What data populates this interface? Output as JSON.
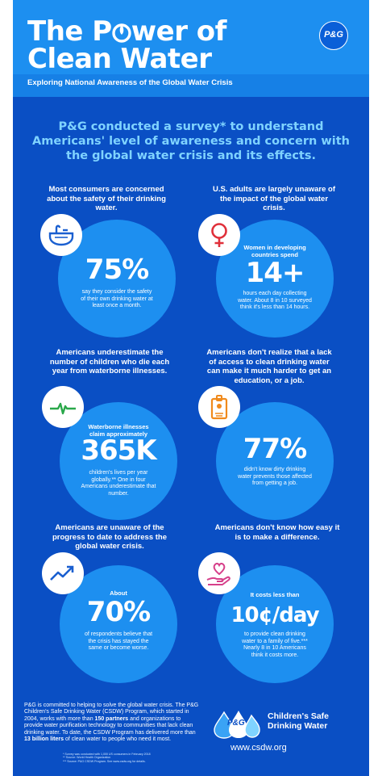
{
  "header": {
    "title_line1_a": "The P",
    "title_line1_b": "wer of",
    "title_line2": "Clean Water",
    "subtitle": "Exploring National Awareness of the Global Water Crisis",
    "logo": "P&G"
  },
  "intro": "P&G conducted a survey* to understand Americans' level of awareness and concern with the global water crisis and its effects.",
  "cards": [
    {
      "lead": "Most consumers are concerned about the safety of their drinking water.",
      "icon": "sink-icon",
      "pre": "",
      "big": "75%",
      "desc": "say they consider the safety of their own drinking water at least once a month."
    },
    {
      "lead": "U.S. adults are largely unaware of the impact of the global water crisis.",
      "icon": "female-symbol-icon",
      "pre": "Women in developing countries spend",
      "big": "14+",
      "desc": "hours each day collecting water. About 8 in 10 surveyed think it's less than 14 hours."
    },
    {
      "lead": "Americans underestimate the number of children who die each year from waterborne illnesses.",
      "icon": "heartbeat-icon",
      "pre": "Waterborne illnesses claim approximately",
      "big": "365K",
      "desc": "children's lives per year globally.** One in four Americans underestimate that number."
    },
    {
      "lead": "Americans don't realize that a lack of access to clean drinking water can make it much harder to get an education, or a job.",
      "icon": "id-badge-icon",
      "pre": "",
      "big": "77%",
      "desc": "didn't know dirty drinking water prevents those affected from getting a job."
    },
    {
      "lead": "Americans are unaware of the progress to date to address the global water crisis.",
      "icon": "trend-up-icon",
      "pre": "About",
      "big": "70%",
      "desc": "of respondents believe that the crisis has stayed the same or become worse."
    },
    {
      "lead": "Americans don't know how easy it is to make a difference.",
      "icon": "heart-hand-icon",
      "pre": "It costs less than",
      "big": "10¢/day",
      "desc": "to provide clean drinking water to a family of five.*** Nearly 8 in 10 Americans think it costs more."
    }
  ],
  "footer": {
    "p1": "P&G is committed to helping to solve the global water crisis. The P&G Children's Safe Drinking Water (CSDW) Program, which started in 2004, works with more than ",
    "b1": "150 partners",
    "p2": " and organizations to provide water purification technology to communities that lack clean drinking water. To date, the CSDW Program has delivered more than ",
    "b2": "13 billion liters",
    "p3": " of clean water to people who need it most.",
    "note1": "* Survey was conducted with 1,000 US consumers in February 2018",
    "note2": "** Source: World Health Organization",
    "note3": "*** Source: P&G CSDW Program. See www.csdw.org for details.",
    "csdw_logo": "P&G",
    "csdw_name_1": "Children's Safe",
    "csdw_name_2": "Drinking Water",
    "website": "www.csdw.org"
  },
  "colors": {
    "background": "#0a4fc4",
    "header": "#1d8ff0",
    "bubble": "#1d8ff0",
    "intro_text": "#7fd3ff",
    "icon_sink": "#1a5fd0",
    "icon_female": "#e0303a",
    "icon_heartbeat": "#2aa84a",
    "icon_badge": "#f08a1c",
    "icon_trend": "#1a5fd0",
    "icon_heart": "#d6408a"
  }
}
